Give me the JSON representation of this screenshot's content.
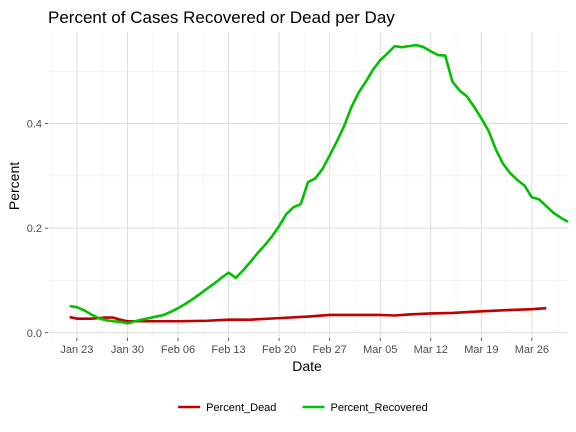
{
  "chart_data": {
    "type": "line",
    "title": "Percent of Cases Recovered or Dead per Day",
    "xlabel": "Date",
    "ylabel": "Percent",
    "x_range": [
      "2020-01-19",
      "2020-03-31"
    ],
    "ylim": [
      -0.01,
      0.575
    ],
    "x_ticks": [
      {
        "date": "2020-01-23",
        "label": "Jan 23"
      },
      {
        "date": "2020-01-30",
        "label": "Jan 30"
      },
      {
        "date": "2020-02-06",
        "label": "Feb 06"
      },
      {
        "date": "2020-02-13",
        "label": "Feb 13"
      },
      {
        "date": "2020-02-20",
        "label": "Feb 20"
      },
      {
        "date": "2020-02-27",
        "label": "Feb 27"
      },
      {
        "date": "2020-03-05",
        "label": "Mar 05"
      },
      {
        "date": "2020-03-12",
        "label": "Mar 12"
      },
      {
        "date": "2020-03-19",
        "label": "Mar 19"
      },
      {
        "date": "2020-03-26",
        "label": "Mar 26"
      }
    ],
    "y_ticks": [
      {
        "value": 0.0,
        "label": "0.0"
      },
      {
        "value": 0.2,
        "label": "0.2"
      },
      {
        "value": 0.4,
        "label": "0.4"
      }
    ],
    "grid": true,
    "legend_position": "bottom",
    "series": [
      {
        "name": "Percent_Dead",
        "color": "#c00000",
        "points": [
          [
            "2020-01-22",
            0.03
          ],
          [
            "2020-01-23",
            0.027
          ],
          [
            "2020-01-24",
            0.027
          ],
          [
            "2020-01-25",
            0.027
          ],
          [
            "2020-01-26",
            0.028
          ],
          [
            "2020-01-27",
            0.029
          ],
          [
            "2020-01-28",
            0.029
          ],
          [
            "2020-01-29",
            0.025
          ],
          [
            "2020-01-30",
            0.022
          ],
          [
            "2020-01-31",
            0.022
          ],
          [
            "2020-02-03",
            0.022
          ],
          [
            "2020-02-06",
            0.022
          ],
          [
            "2020-02-10",
            0.023
          ],
          [
            "2020-02-13",
            0.025
          ],
          [
            "2020-02-16",
            0.025
          ],
          [
            "2020-02-20",
            0.028
          ],
          [
            "2020-02-24",
            0.031
          ],
          [
            "2020-02-27",
            0.034
          ],
          [
            "2020-03-02",
            0.034
          ],
          [
            "2020-03-05",
            0.034
          ],
          [
            "2020-03-07",
            0.033
          ],
          [
            "2020-03-09",
            0.035
          ],
          [
            "2020-03-12",
            0.037
          ],
          [
            "2020-03-15",
            0.038
          ],
          [
            "2020-03-19",
            0.041
          ],
          [
            "2020-03-22",
            0.043
          ],
          [
            "2020-03-26",
            0.045
          ],
          [
            "2020-03-28",
            0.047
          ]
        ]
      },
      {
        "name": "Percent_Recovered",
        "color": "#00c000",
        "points": [
          [
            "2020-01-22",
            0.051
          ],
          [
            "2020-01-23",
            0.049
          ],
          [
            "2020-01-24",
            0.043
          ],
          [
            "2020-01-25",
            0.035
          ],
          [
            "2020-01-26",
            0.028
          ],
          [
            "2020-01-27",
            0.024
          ],
          [
            "2020-01-28",
            0.022
          ],
          [
            "2020-01-29",
            0.021
          ],
          [
            "2020-01-30",
            0.018
          ],
          [
            "2020-01-31",
            0.022
          ],
          [
            "2020-02-01",
            0.025
          ],
          [
            "2020-02-02",
            0.028
          ],
          [
            "2020-02-03",
            0.031
          ],
          [
            "2020-02-04",
            0.034
          ],
          [
            "2020-02-05",
            0.04
          ],
          [
            "2020-02-06",
            0.047
          ],
          [
            "2020-02-07",
            0.055
          ],
          [
            "2020-02-08",
            0.064
          ],
          [
            "2020-02-09",
            0.074
          ],
          [
            "2020-02-10",
            0.084
          ],
          [
            "2020-02-11",
            0.094
          ],
          [
            "2020-02-12",
            0.105
          ],
          [
            "2020-02-13",
            0.115
          ],
          [
            "2020-02-14",
            0.105
          ],
          [
            "2020-02-15",
            0.119
          ],
          [
            "2020-02-16",
            0.135
          ],
          [
            "2020-02-17",
            0.152
          ],
          [
            "2020-02-18",
            0.167
          ],
          [
            "2020-02-19",
            0.184
          ],
          [
            "2020-02-20",
            0.204
          ],
          [
            "2020-02-21",
            0.227
          ],
          [
            "2020-02-22",
            0.24
          ],
          [
            "2020-02-23",
            0.246
          ],
          [
            "2020-02-24",
            0.288
          ],
          [
            "2020-02-25",
            0.295
          ],
          [
            "2020-02-26",
            0.313
          ],
          [
            "2020-02-27",
            0.339
          ],
          [
            "2020-02-28",
            0.366
          ],
          [
            "2020-02-29",
            0.395
          ],
          [
            "2020-03-01",
            0.431
          ],
          [
            "2020-03-02",
            0.459
          ],
          [
            "2020-03-03",
            0.48
          ],
          [
            "2020-03-04",
            0.503
          ],
          [
            "2020-03-05",
            0.521
          ],
          [
            "2020-03-06",
            0.534
          ],
          [
            "2020-03-07",
            0.548
          ],
          [
            "2020-03-08",
            0.546
          ],
          [
            "2020-03-09",
            0.548
          ],
          [
            "2020-03-10",
            0.55
          ],
          [
            "2020-03-11",
            0.546
          ],
          [
            "2020-03-12",
            0.538
          ],
          [
            "2020-03-13",
            0.531
          ],
          [
            "2020-03-14",
            0.53
          ],
          [
            "2020-03-15",
            0.48
          ],
          [
            "2020-03-16",
            0.463
          ],
          [
            "2020-03-17",
            0.452
          ],
          [
            "2020-03-18",
            0.432
          ],
          [
            "2020-03-19",
            0.41
          ],
          [
            "2020-03-20",
            0.386
          ],
          [
            "2020-03-21",
            0.351
          ],
          [
            "2020-03-22",
            0.323
          ],
          [
            "2020-03-23",
            0.305
          ],
          [
            "2020-03-24",
            0.292
          ],
          [
            "2020-03-25",
            0.281
          ],
          [
            "2020-03-26",
            0.259
          ],
          [
            "2020-03-27",
            0.255
          ],
          [
            "2020-03-28",
            0.242
          ],
          [
            "2020-03-29",
            0.229
          ],
          [
            "2020-03-30",
            0.22
          ],
          [
            "2020-03-31",
            0.212
          ]
        ]
      }
    ]
  }
}
